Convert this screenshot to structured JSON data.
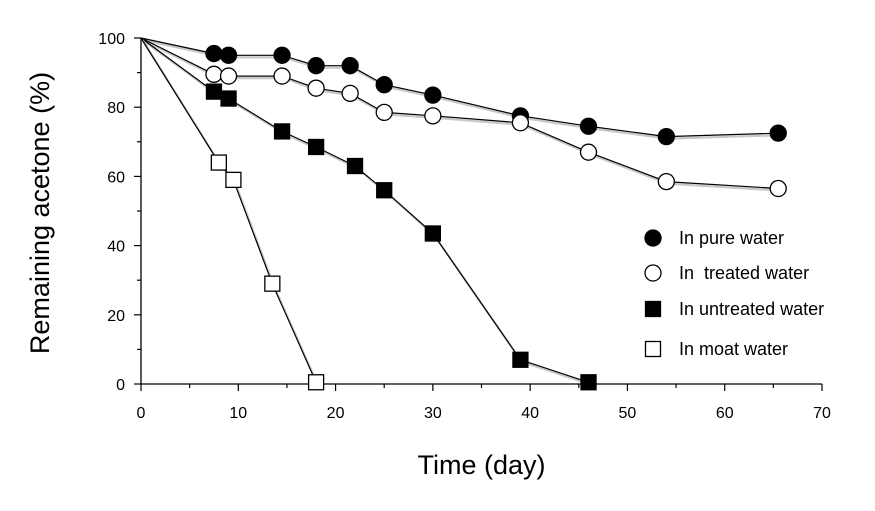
{
  "chart_data": {
    "type": "line",
    "xlabel": "Time (day)",
    "ylabel": "Remaining acetone (%)",
    "xlim": [
      0,
      70
    ],
    "ylim": [
      0,
      100
    ],
    "xticks": [
      0,
      10,
      20,
      30,
      40,
      50,
      60,
      70
    ],
    "yticks": [
      0,
      20,
      40,
      60,
      80,
      100
    ],
    "grid": false,
    "legend_position": "right",
    "series": [
      {
        "name": "In pure water",
        "marker": "circle-filled",
        "x": [
          0,
          7.5,
          9,
          14.5,
          18,
          21.5,
          25,
          30,
          39,
          46,
          54,
          65.5
        ],
        "y": [
          100,
          95.5,
          95,
          95,
          92,
          92,
          86.5,
          83.5,
          77.5,
          74.5,
          71.5,
          72.5
        ]
      },
      {
        "name": "In  treated water",
        "marker": "circle-open",
        "x": [
          0,
          7.5,
          9,
          14.5,
          18,
          21.5,
          25,
          30,
          39,
          46,
          54,
          65.5
        ],
        "y": [
          100,
          89.5,
          89,
          89,
          85.5,
          84,
          78.5,
          77.5,
          75.5,
          67,
          58.5,
          56.5
        ]
      },
      {
        "name": "In untreated water",
        "marker": "square-filled",
        "x": [
          0,
          7.5,
          9,
          14.5,
          18,
          22,
          25,
          30,
          39,
          46
        ],
        "y": [
          100,
          84.5,
          82.5,
          73,
          68.5,
          63,
          56,
          43.5,
          7,
          0.5
        ]
      },
      {
        "name": "In moat water",
        "marker": "square-open",
        "x": [
          0,
          8,
          9.5,
          13.5,
          18
        ],
        "y": [
          100,
          64,
          59,
          29,
          0.5
        ]
      }
    ]
  }
}
